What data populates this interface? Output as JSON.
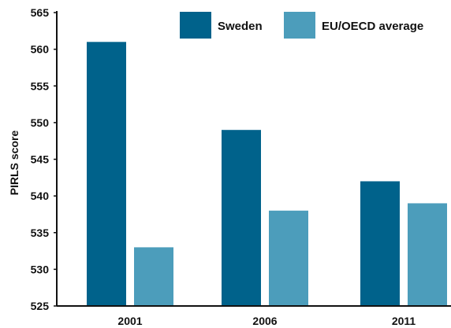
{
  "chart_data": {
    "type": "bar",
    "title": "",
    "xlabel": "",
    "ylabel": "PIRLS score",
    "categories": [
      "2001",
      "2006",
      "2011"
    ],
    "series": [
      {
        "name": "Sweden",
        "values": [
          561,
          549,
          542
        ],
        "color": "#00628b"
      },
      {
        "name": "EU/OECD average",
        "values": [
          533,
          538,
          539
        ],
        "color": "#4c9dbb"
      }
    ],
    "ylim": [
      525,
      565
    ],
    "yticks": [
      "525",
      "530",
      "535",
      "540",
      "545",
      "550",
      "555",
      "560",
      "565"
    ],
    "grid": false,
    "legend_position": "top-right"
  }
}
